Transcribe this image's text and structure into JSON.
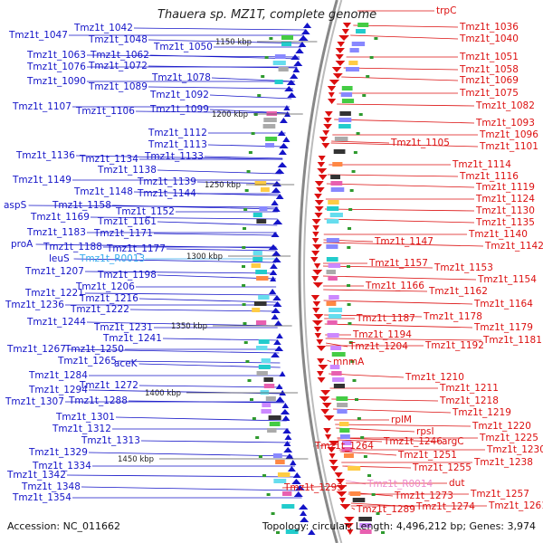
{
  "title": "Thauera sp. MZ1T, complete genome",
  "footer": {
    "accession": "Accession: NC_011662",
    "topology": "Topology: circular; Length: 4,496,212 bp; Genes: 3,974"
  },
  "colors": {
    "forward": "#1414c8",
    "reverse": "#dc1010",
    "rna": "#ee88cc",
    "trna_left": "#33aaee",
    "backbone": "#888888",
    "ticks": "#2e9a2e"
  },
  "ticks": [
    "1150 kbp",
    "1200 kbp",
    "1250 kbp",
    "1300 kbp",
    "1350 kbp",
    "1400 kbp",
    "1450 kbp"
  ],
  "left_labels": [
    "Tmz1t_1047",
    "Tmz1t_1042",
    "Tmz1t_1048",
    "Tmz1t_1050",
    "Tmz1t_1063",
    "Tmz1t_1062",
    "Tmz1t_1076",
    "Tmz1t_1072",
    "Tmz1t_1078",
    "Tmz1t_1090",
    "Tmz1t_1089",
    "Tmz1t_1092",
    "Tmz1t_1107",
    "Tmz1t_1106",
    "Tmz1t_1099",
    "Tmz1t_1112",
    "Tmz1t_1113",
    "Tmz1t_1136",
    "Tmz1t_1134",
    "Tmz1t_1133",
    "Tmz1t_1138",
    "Tmz1t_1149",
    "Tmz1t_1139",
    "Tmz1t_1148",
    "Tmz1t_1144",
    "aspS",
    "Tmz1t_1158",
    "Tmz1t_1152",
    "Tmz1t_1169",
    "Tmz1t_1161",
    "Tmz1t_1183",
    "Tmz1t_1171",
    "proA",
    "Tmz1t_1188",
    "Tmz1t_1177",
    "leuS",
    "Tmz1t_R0013",
    "Tmz1t_1207",
    "Tmz1t_1198",
    "Tmz1t_1206",
    "Tmz1t_1221",
    "Tmz1t_1216",
    "Tmz1t_1236",
    "Tmz1t_1222",
    "Tmz1t_1244",
    "Tmz1t_1231",
    "Tmz1t_1241",
    "Tmz1t_1267",
    "Tmz1t_1250",
    "Tmz1t_1265",
    "aceK",
    "Tmz1t_1284",
    "Tmz1t_1272",
    "Tmz1t_1294",
    "Tmz1t_1307",
    "Tmz1t_1288",
    "Tmz1t_1301",
    "Tmz1t_1312",
    "Tmz1t_1313",
    "Tmz1t_1329",
    "Tmz1t_1334",
    "Tmz1t_1342",
    "Tmz1t_1348",
    "Tmz1t_1354"
  ],
  "right_labels": [
    "trpC",
    "Tmz1t_1036",
    "Tmz1t_1040",
    "Tmz1t_1051",
    "Tmz1t_1058",
    "Tmz1t_1069",
    "Tmz1t_1075",
    "Tmz1t_1082",
    "Tmz1t_1093",
    "Tmz1t_1096",
    "Tmz1t_1105",
    "Tmz1t_1101",
    "Tmz1t_1114",
    "Tmz1t_1116",
    "Tmz1t_1119",
    "Tmz1t_1124",
    "Tmz1t_1130",
    "Tmz1t_1135",
    "Tmz1t_1140",
    "Tmz1t_1147",
    "Tmz1t_1142",
    "Tmz1t_1157",
    "Tmz1t_1153",
    "Tmz1t_1154",
    "Tmz1t_1166",
    "Tmz1t_1162",
    "Tmz1t_1164",
    "Tmz1t_1187",
    "Tmz1t_1178",
    "Tmz1t_1179",
    "Tmz1t_1194",
    "Tmz1t_1181",
    "Tmz1t_1204",
    "Tmz1t_1192",
    "mnmA",
    "Tmz1t_1210",
    "Tmz1t_1211",
    "Tmz1t_1218",
    "Tmz1t_1219",
    "rplM",
    "Tmz1t_1220",
    "rpsI",
    "Tmz1t_1225",
    "Tmz1t_1246",
    "argC",
    "Tmz1t_1230",
    "Tmz1t_1264",
    "Tmz1t_1251",
    "Tmz1t_1238",
    "Tmz1t_1255",
    "Tmz1t_R0014",
    "dut",
    "Tmz1t_1293",
    "Tmz1t_1273",
    "Tmz1t_1257",
    "Tmz1t_1289",
    "Tmz1t_1274",
    "Tmz1t_1261"
  ]
}
